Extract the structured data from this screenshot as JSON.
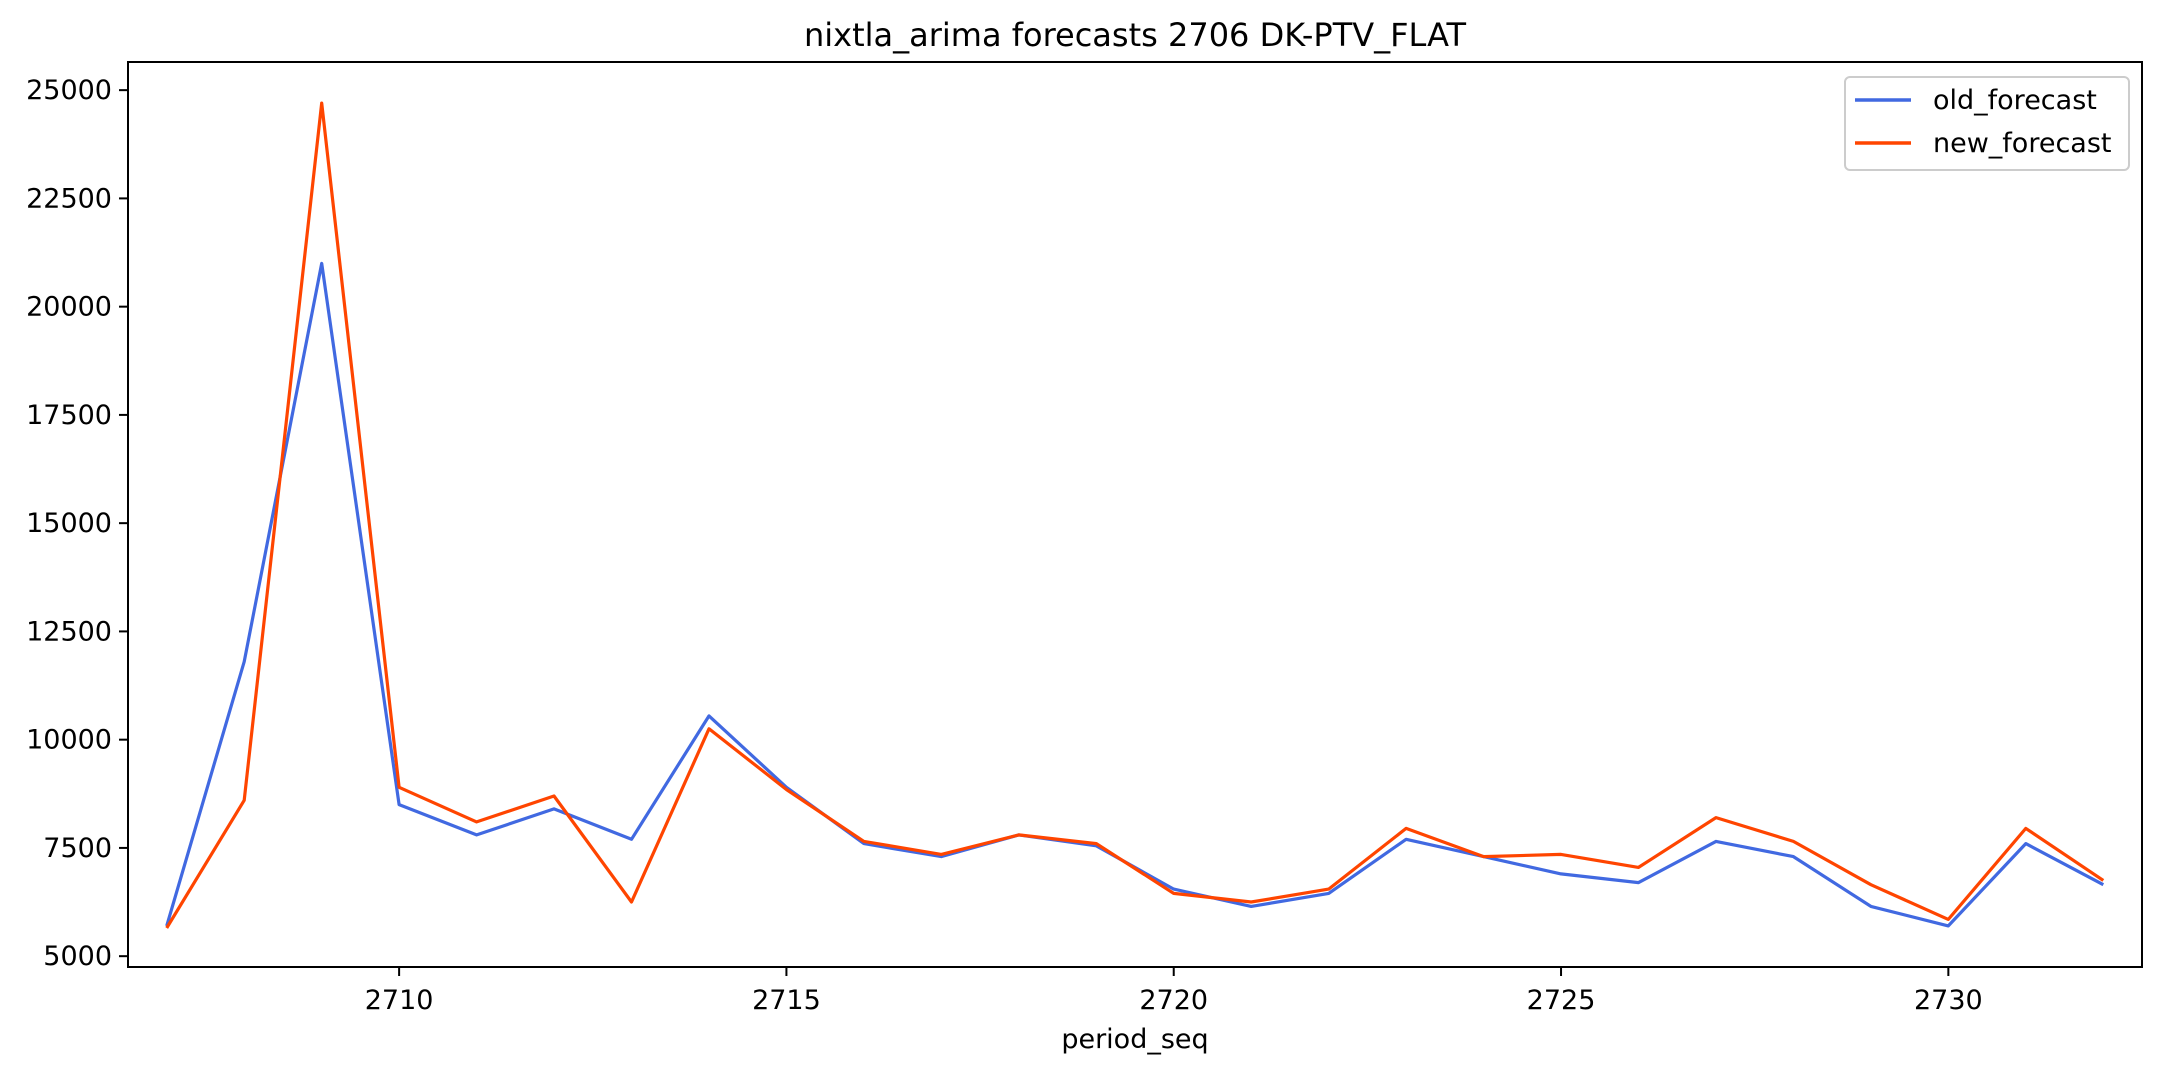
{
  "chart_data": {
    "type": "line",
    "title": "nixtla_arima forecasts 2706 DK-PTV_FLAT",
    "xlabel": "period_seq",
    "ylabel": "",
    "x": [
      2707,
      2708,
      2709,
      2710,
      2711,
      2712,
      2713,
      2714,
      2715,
      2716,
      2717,
      2718,
      2719,
      2720,
      2721,
      2722,
      2723,
      2724,
      2725,
      2726,
      2727,
      2728,
      2729,
      2730,
      2731,
      2732
    ],
    "xlim": [
      2706.5,
      2732.5
    ],
    "ylim": [
      4750,
      25650
    ],
    "xticks": [
      2710,
      2715,
      2720,
      2725,
      2730
    ],
    "yticks": [
      5000,
      7500,
      10000,
      12500,
      15000,
      17500,
      20000,
      22500,
      25000
    ],
    "series": [
      {
        "name": "old_forecast",
        "color": "#4169E1",
        "values": [
          5700,
          11800,
          21000,
          8500,
          7800,
          8400,
          7700,
          10550,
          8900,
          7600,
          7300,
          7800,
          7550,
          6550,
          6150,
          6450,
          7700,
          7300,
          6900,
          6700,
          7650,
          7300,
          6150,
          5700,
          7600,
          6650
        ]
      },
      {
        "name": "new_forecast",
        "color": "#FF4500",
        "values": [
          5650,
          8600,
          24700,
          8900,
          8100,
          8700,
          6250,
          10250,
          8850,
          7650,
          7350,
          7800,
          7600,
          6450,
          6250,
          6550,
          7950,
          7300,
          7350,
          7050,
          8200,
          7650,
          6650,
          5850,
          7950,
          6750
        ]
      }
    ],
    "legend": {
      "position": "top-right"
    },
    "grid": false
  }
}
